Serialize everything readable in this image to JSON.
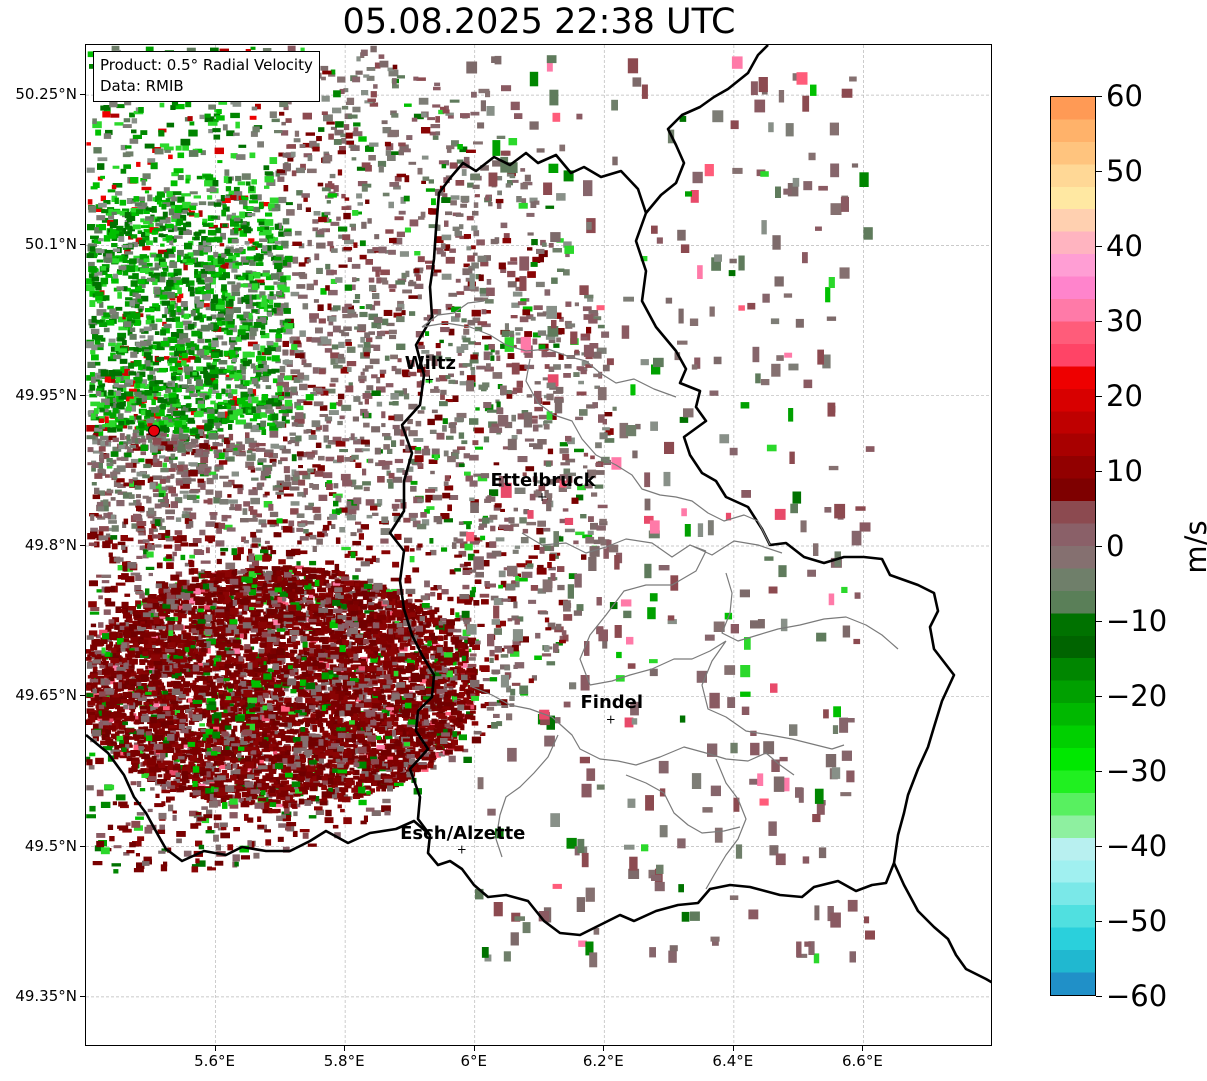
{
  "title": "05.08.2025 22:38 UTC",
  "info_box": {
    "product": "Product: 0.5° Radial Velocity",
    "data_source": "Data: RMIB"
  },
  "axes": {
    "lat_ticks": [
      "50.25°N",
      "50.1°N",
      "49.95°N",
      "49.8°N",
      "49.65°N",
      "49.5°N",
      "49.35°N"
    ],
    "lon_ticks": [
      "5.6°E",
      "5.8°E",
      "6°E",
      "6.2°E",
      "6.4°E",
      "6.6°E"
    ],
    "lat_range": [
      49.3,
      50.3
    ],
    "lon_range": [
      5.4,
      6.8
    ],
    "grid": true
  },
  "cities": [
    {
      "name": "Wiltz",
      "lon": 5.93,
      "lat": 49.966
    },
    {
      "name": "Ettelbruck",
      "lon": 6.104,
      "lat": 49.849
    },
    {
      "name": "Findel",
      "lon": 6.21,
      "lat": 49.627
    },
    {
      "name": "Esch/Alzette",
      "lon": 5.98,
      "lat": 49.497
    }
  ],
  "radar_site": {
    "lon": 5.505,
    "lat": 49.915,
    "color": "#e8000b"
  },
  "colorbar": {
    "unit": "m/s",
    "range": [
      -60,
      60
    ],
    "tick_labels": [
      "60",
      "50",
      "40",
      "30",
      "20",
      "10",
      "0",
      "−10",
      "−20",
      "−30",
      "−40",
      "−50",
      "−60"
    ],
    "colors_top_to_bottom": [
      "#ff9a55",
      "#ffb26a",
      "#ffc47e",
      "#ffd896",
      "#ffe8a2",
      "#ffd0b0",
      "#ffb4c0",
      "#ff9ed4",
      "#ff84cc",
      "#ff7aa8",
      "#ff5c7a",
      "#ff4466",
      "#ee0000",
      "#d80000",
      "#bf0000",
      "#a80000",
      "#920000",
      "#7e0000",
      "#8c4a50",
      "#8a6068",
      "#857070",
      "#6f7f6a",
      "#5a7f58",
      "#007200",
      "#006400",
      "#008600",
      "#00a000",
      "#00b800",
      "#00d000",
      "#00e800",
      "#20f020",
      "#58f060",
      "#8ef0a0",
      "#b8f0f0",
      "#a0f0f0",
      "#7ae8e8",
      "#50e0e0",
      "#2ad0dc",
      "#20b8d0",
      "#2090c8"
    ]
  }
}
